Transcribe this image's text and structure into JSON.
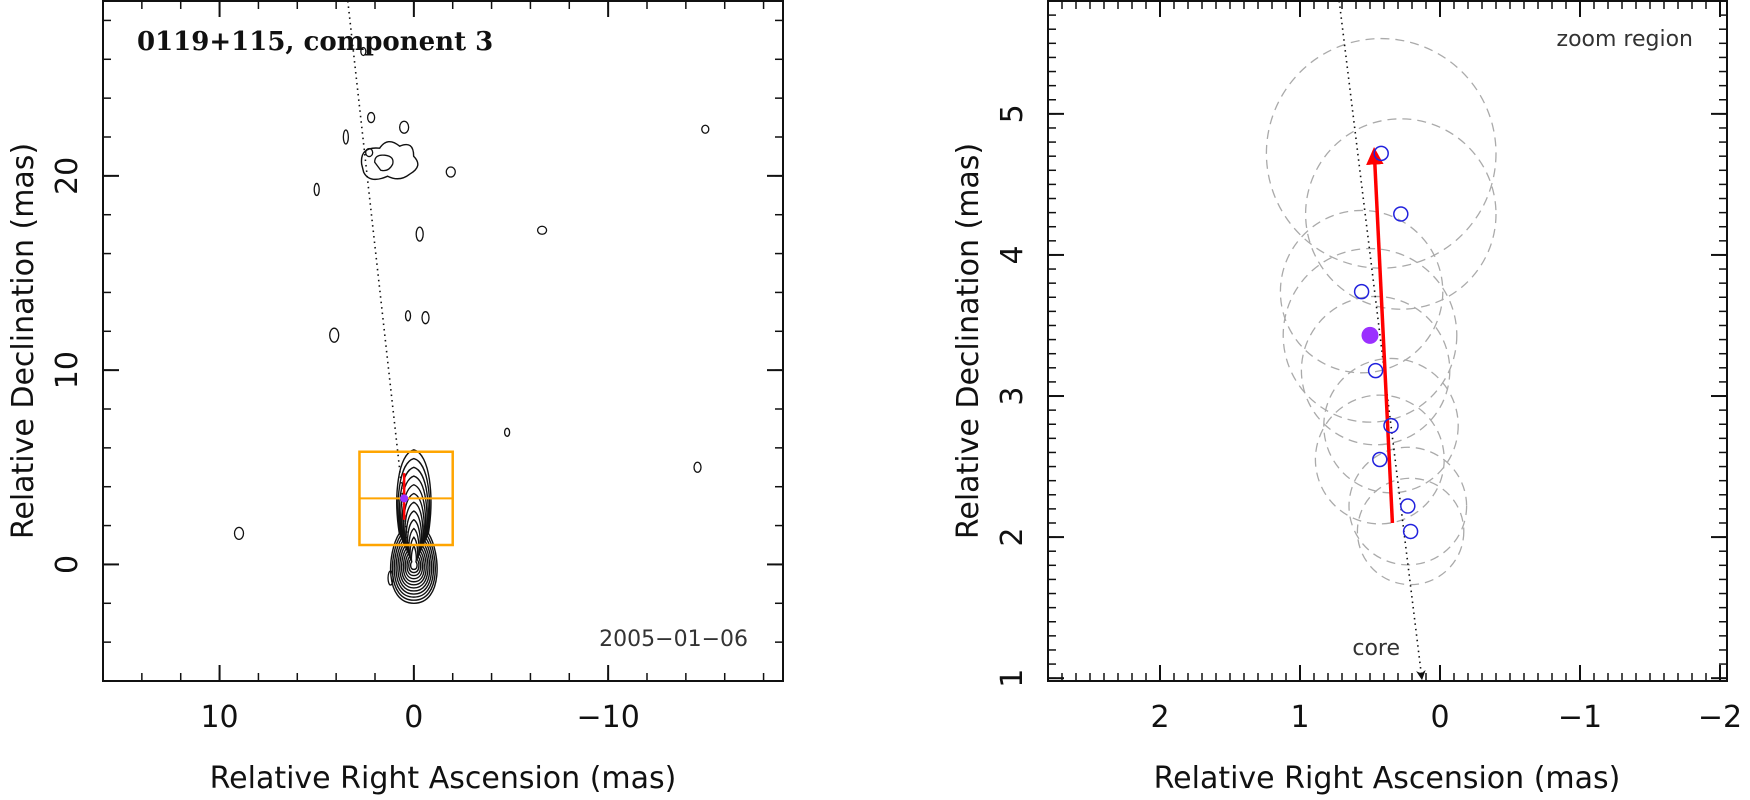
{
  "colors": {
    "axis": "#111111",
    "contour": "#111111",
    "box": "#ffa500",
    "arrow": "#ff0000",
    "marker_open": "#2222dd",
    "marker_filled": "#9b30ff",
    "circle_dashed": "#aaaaaa"
  },
  "chart_data": [
    {
      "type": "contour",
      "title": "0119+115, component 3",
      "date_label": "2005−01−06",
      "xlabel": "Relative Right Ascension (mas)",
      "ylabel": "Relative Declination (mas)",
      "xlim": [
        16,
        -19
      ],
      "ylim": [
        -6,
        29
      ],
      "xticks": [
        10,
        0,
        -10
      ],
      "xtick_labels": [
        "10",
        "0",
        "−10"
      ],
      "yticks": [
        0,
        10,
        20
      ],
      "ytick_labels": [
        "0",
        "10",
        "20"
      ],
      "zoom_box": {
        "x_range": [
          2.8,
          -2.0
        ],
        "y_range": [
          1.0,
          5.8
        ]
      },
      "component_marker": {
        "x": 0.5,
        "y": 3.4
      },
      "motion_arrow": {
        "from": [
          0.5,
          2.3
        ],
        "to": [
          0.5,
          4.7
        ]
      },
      "jet_axis": {
        "from": [
          3.4,
          29
        ],
        "to": [
          0.3,
          1.0
        ]
      },
      "core_contour_levels": 12,
      "isolated_contours": [
        {
          "x": 2.6,
          "y": 26.4
        },
        {
          "x": 2.2,
          "y": 23.0
        },
        {
          "x": 0.5,
          "y": 22.5
        },
        {
          "x": 3.5,
          "y": 22.0
        },
        {
          "x": 2.3,
          "y": 21.2
        },
        {
          "x": -1.9,
          "y": 20.2
        },
        {
          "x": 5.0,
          "y": 19.3
        },
        {
          "x": -0.3,
          "y": 17.0
        },
        {
          "x": -6.6,
          "y": 17.2
        },
        {
          "x": 0.3,
          "y": 12.8
        },
        {
          "x": -0.6,
          "y": 12.7
        },
        {
          "x": 4.1,
          "y": 11.8
        },
        {
          "x": -4.8,
          "y": 6.8
        },
        {
          "x": -14.6,
          "y": 5.0
        },
        {
          "x": 9.0,
          "y": 1.6
        },
        {
          "x": 1.2,
          "y": -0.7
        },
        {
          "x": -15.0,
          "y": 22.4
        }
      ]
    },
    {
      "type": "scatter",
      "title": "zoom region",
      "core_label": "core",
      "xlabel": "Relative Right Ascension (mas)",
      "ylabel": "Relative Declination (mas)",
      "xlim": [
        2.8,
        -2.05
      ],
      "ylim": [
        0.98,
        5.8
      ],
      "xticks": [
        2,
        1,
        0,
        -1,
        -2
      ],
      "xtick_labels": [
        "2",
        "1",
        "0",
        "−1",
        "−2"
      ],
      "yticks": [
        1,
        2,
        3,
        4,
        5
      ],
      "ytick_labels": [
        "1",
        "2",
        "3",
        "4",
        "5"
      ],
      "series": [
        {
          "marker": "open-circle",
          "points": [
            {
              "x": 0.42,
              "y": 4.72
            },
            {
              "x": 0.28,
              "y": 4.29
            },
            {
              "x": 0.56,
              "y": 3.74
            },
            {
              "x": 0.46,
              "y": 3.18
            },
            {
              "x": 0.35,
              "y": 2.79
            },
            {
              "x": 0.43,
              "y": 2.55
            },
            {
              "x": 0.23,
              "y": 2.22
            },
            {
              "x": 0.21,
              "y": 2.04
            }
          ]
        },
        {
          "marker": "filled-circle",
          "points": [
            {
              "x": 0.5,
              "y": 3.43
            }
          ]
        }
      ],
      "error_circles": [
        {
          "x": 0.42,
          "y": 4.72,
          "r": 0.82
        },
        {
          "x": 0.28,
          "y": 4.29,
          "r": 0.68
        },
        {
          "x": 0.56,
          "y": 3.74,
          "r": 0.58
        },
        {
          "x": 0.46,
          "y": 3.18,
          "r": 0.53
        },
        {
          "x": 0.35,
          "y": 2.79,
          "r": 0.48
        },
        {
          "x": 0.43,
          "y": 2.55,
          "r": 0.46
        },
        {
          "x": 0.23,
          "y": 2.22,
          "r": 0.42
        },
        {
          "x": 0.21,
          "y": 2.04,
          "r": 0.38
        },
        {
          "x": 0.5,
          "y": 3.43,
          "r": 0.62
        }
      ],
      "motion_arrow": {
        "from": [
          0.34,
          2.1
        ],
        "to": [
          0.47,
          4.74
        ]
      },
      "jet_axis": {
        "from": [
          0.72,
          5.8
        ],
        "to": [
          0.13,
          1.0
        ]
      }
    }
  ]
}
